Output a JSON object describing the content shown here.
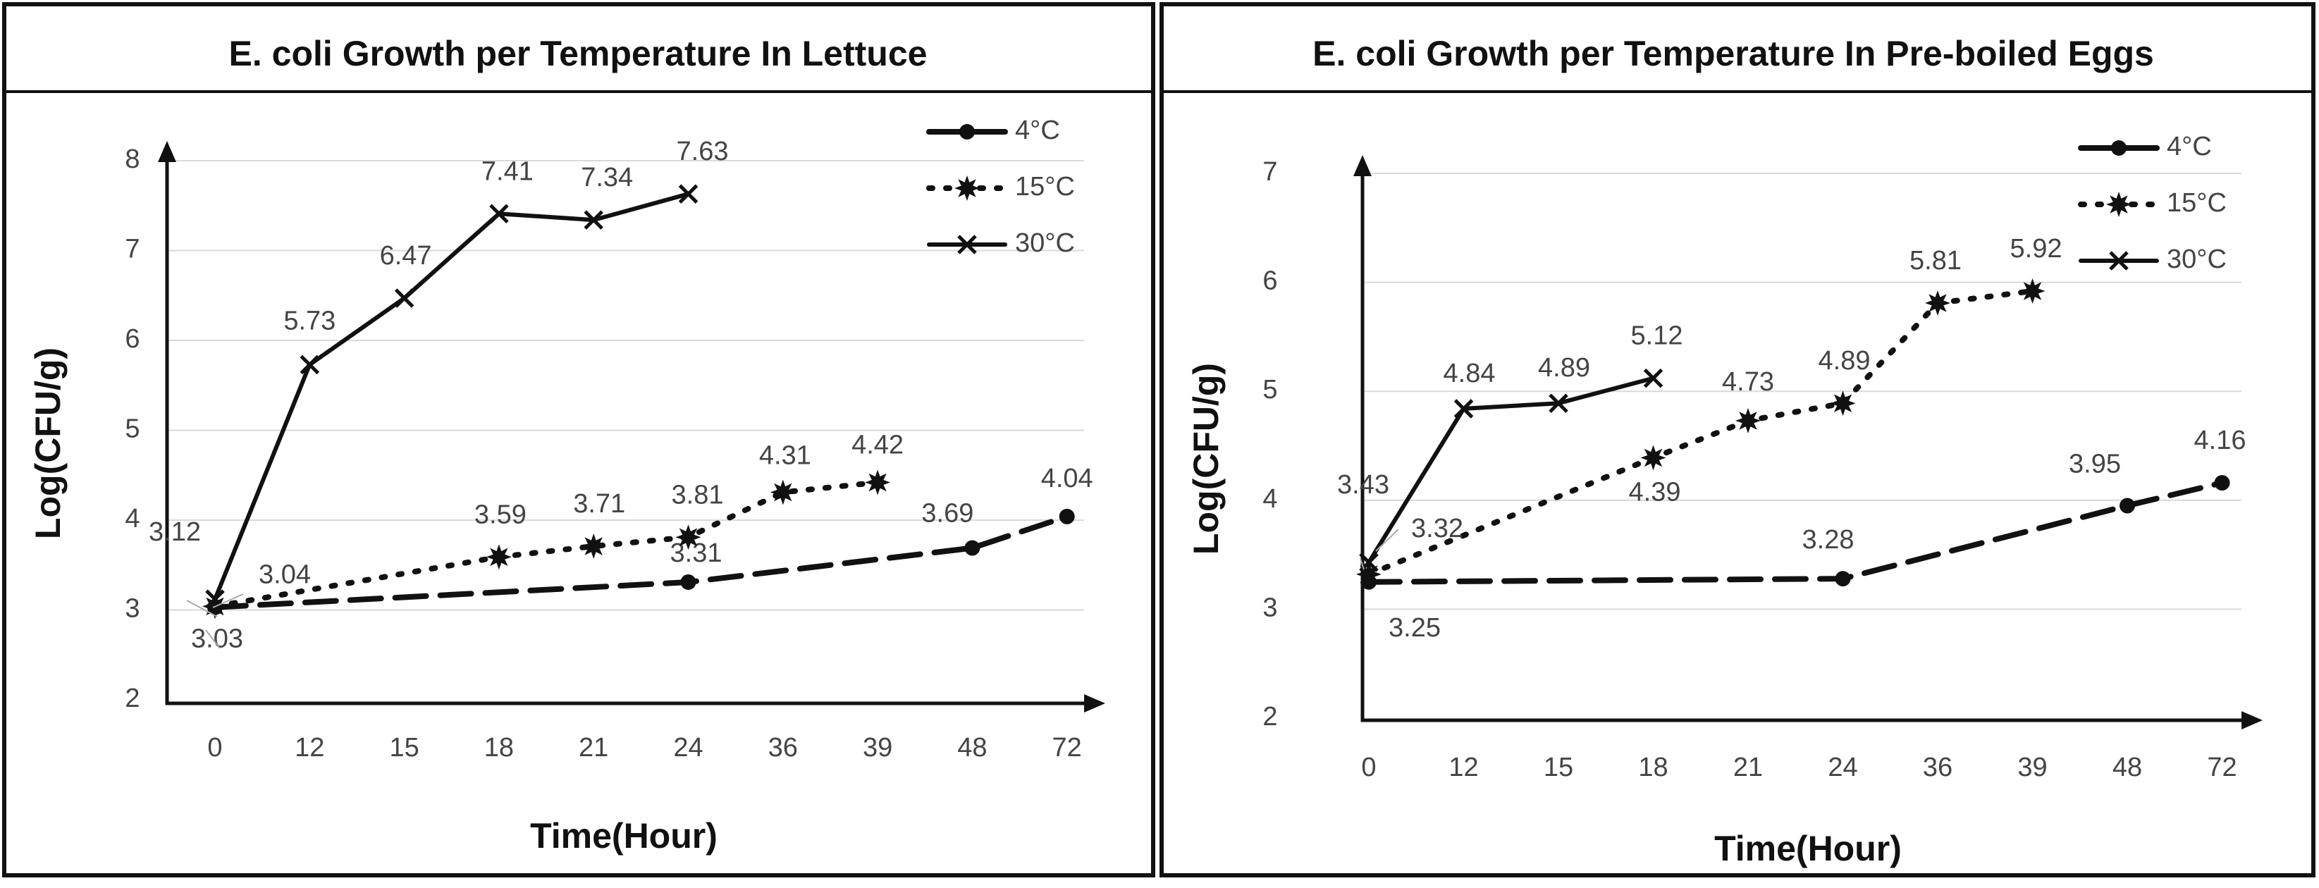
{
  "chart_data": [
    {
      "type": "line",
      "title": "E. coli Growth per Temperature In Lettuce",
      "xlabel": "Time(Hour)",
      "ylabel": "Log(CFU/g)",
      "categories": [
        "0",
        "12",
        "15",
        "18",
        "21",
        "24",
        "36",
        "39",
        "48",
        "72"
      ],
      "yticks": [
        "2",
        "3",
        "4",
        "5",
        "6",
        "7",
        "8"
      ],
      "ylim": [
        2,
        8
      ],
      "legend_position": "top-right",
      "series": [
        {
          "name": "4°C",
          "style": "dashed",
          "marker": "circle",
          "values": [
            3.03,
            null,
            null,
            null,
            null,
            3.31,
            null,
            null,
            3.69,
            4.04
          ],
          "labels": [
            "3.03",
            null,
            null,
            null,
            null,
            "3.31",
            null,
            null,
            "3.69",
            "4.04"
          ]
        },
        {
          "name": "15°C",
          "style": "dotted",
          "marker": "star",
          "values": [
            3.04,
            null,
            null,
            3.59,
            3.71,
            3.81,
            4.31,
            4.42,
            null,
            null
          ],
          "labels": [
            "3.04",
            null,
            null,
            "3.59",
            "3.71",
            "3.81",
            "4.31",
            "4.42",
            null,
            null
          ]
        },
        {
          "name": "30°C",
          "style": "solid",
          "marker": "x",
          "values": [
            3.12,
            5.73,
            6.47,
            7.41,
            7.34,
            7.63,
            null,
            null,
            null,
            null
          ],
          "labels": [
            "3.12",
            "5.73",
            "6.47",
            "7.41",
            "7.34",
            "7.63",
            null,
            null,
            null,
            null
          ]
        }
      ]
    },
    {
      "type": "line",
      "title": "E. coli Growth per Temperature In Pre-boiled Eggs",
      "xlabel": "Time(Hour)",
      "ylabel": "Log(CFU/g)",
      "categories": [
        "0",
        "12",
        "15",
        "18",
        "21",
        "24",
        "36",
        "39",
        "48",
        "72"
      ],
      "yticks": [
        "2",
        "3",
        "4",
        "5",
        "6",
        "7"
      ],
      "ylim": [
        2,
        7
      ],
      "legend_position": "top-right",
      "series": [
        {
          "name": "4°C",
          "style": "dashed",
          "marker": "circle",
          "values": [
            3.25,
            null,
            null,
            null,
            null,
            3.28,
            null,
            null,
            3.95,
            4.16
          ],
          "labels": [
            "3.25",
            null,
            null,
            null,
            null,
            "3.28",
            null,
            null,
            "3.95",
            "4.16"
          ]
        },
        {
          "name": "15°C",
          "style": "dotted",
          "marker": "star",
          "values": [
            3.32,
            null,
            null,
            4.39,
            4.73,
            4.89,
            5.81,
            5.92,
            null,
            null
          ],
          "labels": [
            "3.32",
            null,
            null,
            "4.39",
            "4.73",
            "4.89",
            "5.81",
            "5.92",
            null,
            null
          ]
        },
        {
          "name": "30°C",
          "style": "solid",
          "marker": "x",
          "values": [
            3.43,
            4.84,
            4.89,
            5.12,
            null,
            null,
            null,
            null,
            null,
            null
          ],
          "labels": [
            "3.43",
            "4.84",
            "4.89",
            "5.12",
            null,
            null,
            null,
            null,
            null,
            null
          ]
        }
      ]
    }
  ]
}
